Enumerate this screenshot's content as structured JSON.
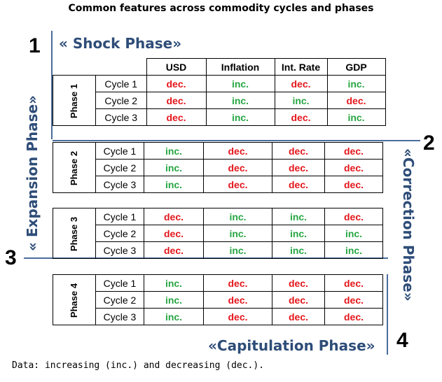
{
  "title": "Common features across commodity cycles and phases",
  "numbers": {
    "n1": "1",
    "n2": "2",
    "n3": "3",
    "n4": "4"
  },
  "phase_names": {
    "shock": "« Shock Phase»",
    "expansion": "« Expansion Phase»",
    "correction": "«Correction Phase»",
    "capitulation": "«Capitulation Phase»"
  },
  "columns": [
    "USD",
    "Inflation",
    "Int. Rate",
    "GDP"
  ],
  "blocks": [
    {
      "phase": "Phase 1",
      "rows": [
        {
          "cycle": "Cycle 1",
          "values": [
            "dec.",
            "inc.",
            "dec.",
            "inc."
          ]
        },
        {
          "cycle": "Cycle 2",
          "values": [
            "dec.",
            "inc.",
            "inc.",
            "dec."
          ]
        },
        {
          "cycle": "Cycle 3",
          "values": [
            "dec.",
            "inc.",
            "dec.",
            "inc."
          ]
        }
      ]
    },
    {
      "phase": "Phase 2",
      "rows": [
        {
          "cycle": "Cycle 1",
          "values": [
            "inc.",
            "dec.",
            "dec.",
            "dec."
          ]
        },
        {
          "cycle": "Cycle 2",
          "values": [
            "inc.",
            "dec.",
            "dec.",
            "dec."
          ]
        },
        {
          "cycle": "Cycle 3",
          "values": [
            "inc.",
            "dec.",
            "dec.",
            "dec."
          ]
        }
      ]
    },
    {
      "phase": "Phase 3",
      "rows": [
        {
          "cycle": "Cycle 1",
          "values": [
            "dec.",
            "inc.",
            "inc.",
            "dec."
          ]
        },
        {
          "cycle": "Cycle 2",
          "values": [
            "dec.",
            "inc.",
            "inc.",
            "inc."
          ]
        },
        {
          "cycle": "Cycle 3",
          "values": [
            "dec.",
            "inc.",
            "inc.",
            "inc."
          ]
        }
      ]
    },
    {
      "phase": "Phase 4",
      "rows": [
        {
          "cycle": "Cycle 1",
          "values": [
            "inc.",
            "dec.",
            "dec.",
            "dec."
          ]
        },
        {
          "cycle": "Cycle 2",
          "values": [
            "inc.",
            "dec.",
            "dec.",
            "dec."
          ]
        },
        {
          "cycle": "Cycle 3",
          "values": [
            "inc.",
            "dec.",
            "dec.",
            "dec."
          ]
        }
      ]
    }
  ],
  "colors": {
    "dec": "#e4161b",
    "inc": "#26a642",
    "accent": "#2e4d78"
  },
  "footnote": "Data: increasing (inc.) and decreasing (dec.)."
}
